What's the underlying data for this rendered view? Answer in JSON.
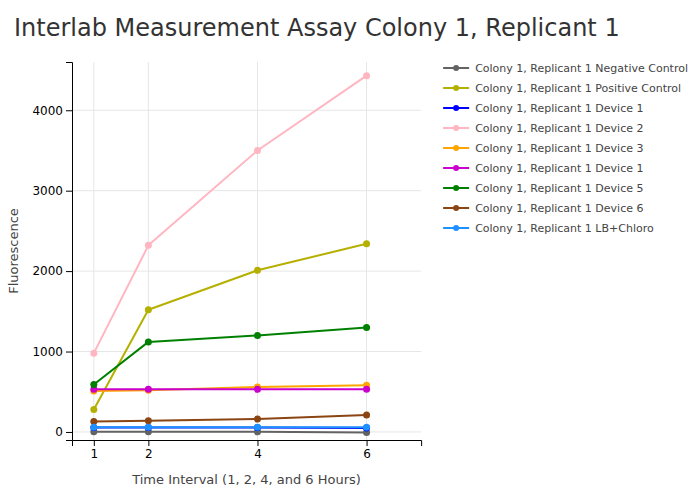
{
  "chart_data": {
    "type": "line",
    "title": "Interlab Measurement Assay Colony 1, Replicant 1",
    "xlabel": "Time Interval (1, 2,  4, and 6 Hours)",
    "ylabel": "Fluorescence",
    "x": [
      1,
      2,
      4,
      6
    ],
    "series": [
      {
        "name": "Colony 1, Replicant 1 Negative Control",
        "color": "#636363",
        "values": [
          2,
          2,
          2,
          -8
        ]
      },
      {
        "name": "Colony 1, Replicant 1 Positive Control",
        "color": "#b5b000",
        "values": [
          280,
          1520,
          2010,
          2340
        ]
      },
      {
        "name": "Colony 1, Replicant 1 Device 1",
        "color": "#0000ff",
        "values": [
          55,
          55,
          55,
          50
        ]
      },
      {
        "name": "Colony 1, Replicant 1 Device 2",
        "color": "#ffb6c1",
        "values": [
          980,
          2320,
          3500,
          4430
        ]
      },
      {
        "name": "Colony 1, Replicant 1 Device 3",
        "color": "#ffa500",
        "values": [
          510,
          520,
          560,
          580
        ]
      },
      {
        "name": "Colony 1, Replicant 1 Device 1",
        "color": "#cc00cc",
        "values": [
          530,
          530,
          530,
          530
        ]
      },
      {
        "name": "Colony 1, Replicant 1 Device 5",
        "color": "#008000",
        "values": [
          590,
          1120,
          1200,
          1300
        ]
      },
      {
        "name": "Colony 1, Replicant 1 Device 6",
        "color": "#8b4513",
        "values": [
          130,
          140,
          160,
          210
        ]
      },
      {
        "name": "Colony 1, Replicant 1 LB+Chloro",
        "color": "#1e90ff",
        "values": [
          60,
          60,
          60,
          60
        ]
      }
    ],
    "xlim": [
      0.6,
      7.0
    ],
    "ylim": [
      -100,
      4600
    ],
    "xticks": [
      1,
      2,
      4,
      6
    ],
    "yticks": [
      0,
      1000,
      2000,
      3000,
      4000
    ],
    "grid": true,
    "legend": "right",
    "marker": "circle",
    "line_style": "solid"
  }
}
